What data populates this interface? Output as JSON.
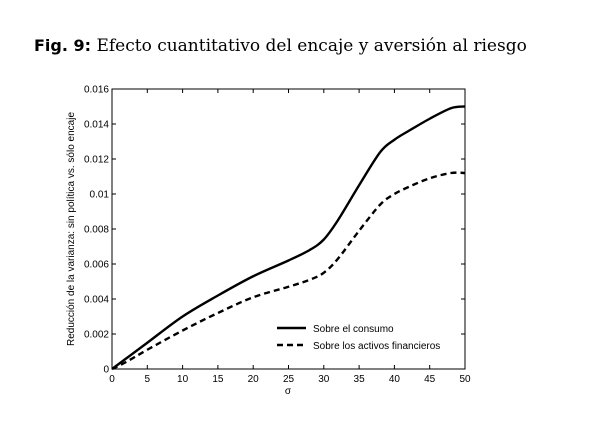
{
  "caption": {
    "label": "Fig. 9:",
    "title": "Efecto cuantitativo del encaje y aversión al riesgo"
  },
  "chart_data": {
    "type": "line",
    "xlabel": "σ",
    "ylabel": "Reducción de la varianza: sin política vs. sólo encaje",
    "xlim": [
      0,
      50
    ],
    "ylim": [
      0,
      0.016
    ],
    "xticks": [
      0,
      5,
      10,
      15,
      20,
      25,
      30,
      35,
      40,
      45,
      50
    ],
    "xtick_labels": [
      "0",
      "5",
      "10",
      "15",
      "20",
      "25",
      "30",
      "35",
      "40",
      "45",
      "50"
    ],
    "yticks": [
      0,
      0.002,
      0.004,
      0.006,
      0.008,
      0.01,
      0.012,
      0.014,
      0.016
    ],
    "ytick_labels": [
      "0",
      "0.002",
      "0.004",
      "0.006",
      "0.008",
      "0.01",
      "0.012",
      "0.014",
      "0.016"
    ],
    "grid": false,
    "legend_position": "lower-right",
    "series": [
      {
        "name": "Sobre el consumo",
        "style": "solid",
        "color": "#000000",
        "x": [
          0,
          2,
          5,
          10,
          15,
          20,
          25,
          28,
          30,
          32,
          35,
          38,
          40,
          42,
          45,
          48,
          50
        ],
        "y": [
          0,
          0.0006,
          0.0015,
          0.003,
          0.0042,
          0.0053,
          0.0062,
          0.0068,
          0.0074,
          0.0085,
          0.0105,
          0.0124,
          0.0131,
          0.0136,
          0.0143,
          0.0149,
          0.015
        ]
      },
      {
        "name": "Sobre los activos financieros",
        "style": "dashed",
        "color": "#000000",
        "x": [
          0,
          2,
          5,
          10,
          15,
          20,
          25,
          28,
          30,
          32,
          35,
          38,
          40,
          42,
          45,
          48,
          50
        ],
        "y": [
          0,
          0.0004,
          0.0011,
          0.0022,
          0.0032,
          0.0041,
          0.0047,
          0.0051,
          0.0055,
          0.0063,
          0.0079,
          0.0094,
          0.01,
          0.0104,
          0.0109,
          0.0112,
          0.0112
        ]
      }
    ]
  }
}
